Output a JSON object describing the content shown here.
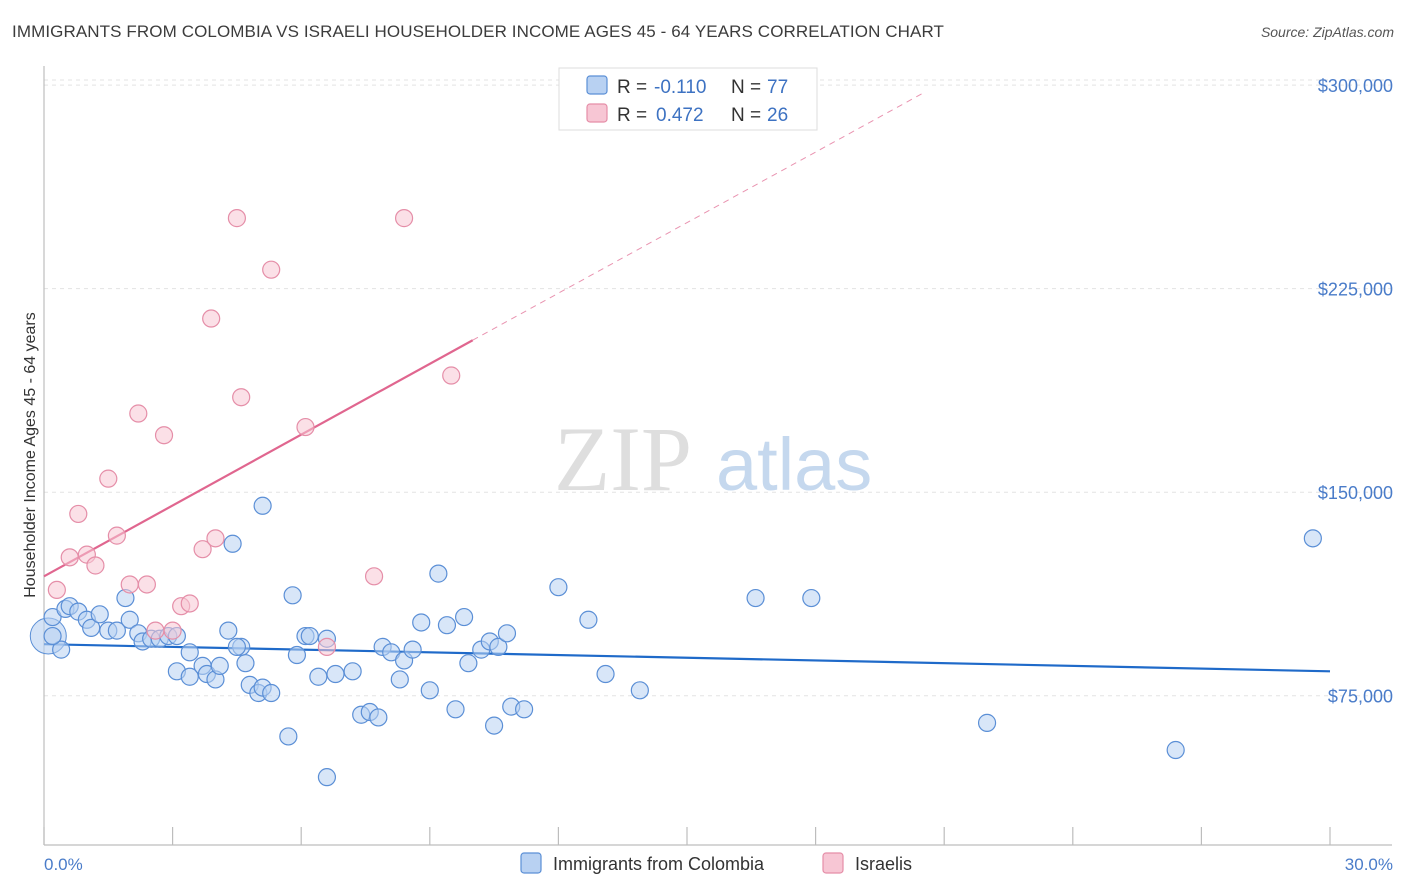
{
  "chart_data": {
    "type": "scatter",
    "title": "IMMIGRANTS FROM COLOMBIA VS ISRAELI HOUSEHOLDER INCOME AGES 45 - 64 YEARS CORRELATION CHART",
    "source": "Source: ZipAtlas.com",
    "ylabel": "Householder Income Ages 45 - 64 years",
    "xlabel": "",
    "xlim": [
      0,
      30
    ],
    "ylim": [
      20000,
      310000
    ],
    "x_tick_labels": [
      "0.0%",
      "30.0%"
    ],
    "y_ticks": [
      75000,
      150000,
      225000,
      300000
    ],
    "y_tick_labels": [
      "$75,000",
      "$150,000",
      "$225,000",
      "$300,000"
    ],
    "watermark": {
      "zip": "ZIP",
      "atlas": "atlas"
    },
    "legend": {
      "r_label": "R =",
      "n_label": "N =",
      "entries": [
        {
          "r": "-0.110",
          "n": "77"
        },
        {
          "r": "0.472",
          "n": "26"
        }
      ]
    },
    "series": [
      {
        "name": "Immigrants from Colombia",
        "color": "#5b8fd6",
        "fill": "#b8d1f2",
        "line_color": "#1f6ac9",
        "trend": {
          "x0": 0,
          "y0": 94000,
          "x1": 30,
          "y1": 84000
        },
        "points": [
          [
            0.2,
            104000
          ],
          [
            0.4,
            92000
          ],
          [
            0.5,
            107000
          ],
          [
            0.6,
            108000
          ],
          [
            0.8,
            106000
          ],
          [
            1.0,
            103000
          ],
          [
            1.1,
            100000
          ],
          [
            1.3,
            105000
          ],
          [
            1.5,
            99000
          ],
          [
            1.7,
            99000
          ],
          [
            1.9,
            111000
          ],
          [
            2.0,
            103000
          ],
          [
            2.2,
            98000
          ],
          [
            2.3,
            95000
          ],
          [
            2.5,
            96000
          ],
          [
            2.7,
            96000
          ],
          [
            2.9,
            97000
          ],
          [
            3.1,
            97000
          ],
          [
            3.1,
            84000
          ],
          [
            3.4,
            82000
          ],
          [
            3.4,
            91000
          ],
          [
            3.7,
            86000
          ],
          [
            3.8,
            83000
          ],
          [
            4.0,
            81000
          ],
          [
            4.1,
            86000
          ],
          [
            4.3,
            99000
          ],
          [
            4.4,
            131000
          ],
          [
            4.6,
            93000
          ],
          [
            4.7,
            87000
          ],
          [
            4.8,
            79000
          ],
          [
            5.0,
            76000
          ],
          [
            5.1,
            78000
          ],
          [
            5.3,
            76000
          ],
          [
            5.7,
            60000
          ],
          [
            5.8,
            112000
          ],
          [
            5.9,
            90000
          ],
          [
            6.1,
            97000
          ],
          [
            6.2,
            97000
          ],
          [
            6.4,
            82000
          ],
          [
            6.6,
            96000
          ],
          [
            6.6,
            45000
          ],
          [
            6.8,
            83000
          ],
          [
            7.2,
            84000
          ],
          [
            7.4,
            68000
          ],
          [
            7.6,
            69000
          ],
          [
            7.8,
            67000
          ],
          [
            7.9,
            93000
          ],
          [
            8.1,
            91000
          ],
          [
            8.3,
            81000
          ],
          [
            8.4,
            88000
          ],
          [
            8.6,
            92000
          ],
          [
            8.8,
            102000
          ],
          [
            9.0,
            77000
          ],
          [
            9.2,
            120000
          ],
          [
            9.4,
            101000
          ],
          [
            9.6,
            70000
          ],
          [
            9.8,
            104000
          ],
          [
            9.9,
            87000
          ],
          [
            10.2,
            92000
          ],
          [
            10.4,
            95000
          ],
          [
            10.5,
            64000
          ],
          [
            10.6,
            93000
          ],
          [
            10.8,
            98000
          ],
          [
            10.9,
            71000
          ],
          [
            11.2,
            70000
          ],
          [
            12.0,
            115000
          ],
          [
            12.7,
            103000
          ],
          [
            13.1,
            83000
          ],
          [
            13.9,
            77000
          ],
          [
            16.6,
            111000
          ],
          [
            17.9,
            111000
          ],
          [
            22.0,
            65000
          ],
          [
            26.4,
            55000
          ],
          [
            29.6,
            133000
          ],
          [
            0.2,
            97000
          ],
          [
            5.1,
            145000
          ],
          [
            4.5,
            93000
          ]
        ]
      },
      {
        "name": "Israelis",
        "color": "#e58ea8",
        "fill": "#f7c6d4",
        "line_color": "#e0668f",
        "trend": {
          "x0": 0,
          "y0": 119000,
          "x1": 10,
          "y1": 206000
        },
        "trend_ext": {
          "x0": 10,
          "y0": 206000,
          "x1": 20.5,
          "y1": 297000
        },
        "points": [
          [
            0.3,
            114000
          ],
          [
            0.6,
            126000
          ],
          [
            0.8,
            142000
          ],
          [
            1.0,
            127000
          ],
          [
            1.2,
            123000
          ],
          [
            1.5,
            155000
          ],
          [
            1.7,
            134000
          ],
          [
            2.0,
            116000
          ],
          [
            2.2,
            179000
          ],
          [
            2.4,
            116000
          ],
          [
            2.6,
            99000
          ],
          [
            2.8,
            171000
          ],
          [
            3.0,
            99000
          ],
          [
            3.2,
            108000
          ],
          [
            3.4,
            109000
          ],
          [
            3.7,
            129000
          ],
          [
            3.9,
            214000
          ],
          [
            4.0,
            133000
          ],
          [
            4.5,
            251000
          ],
          [
            4.6,
            185000
          ],
          [
            5.3,
            232000
          ],
          [
            6.1,
            174000
          ],
          [
            6.6,
            93000
          ],
          [
            7.7,
            119000
          ],
          [
            8.4,
            251000
          ],
          [
            9.5,
            193000
          ]
        ]
      }
    ]
  }
}
